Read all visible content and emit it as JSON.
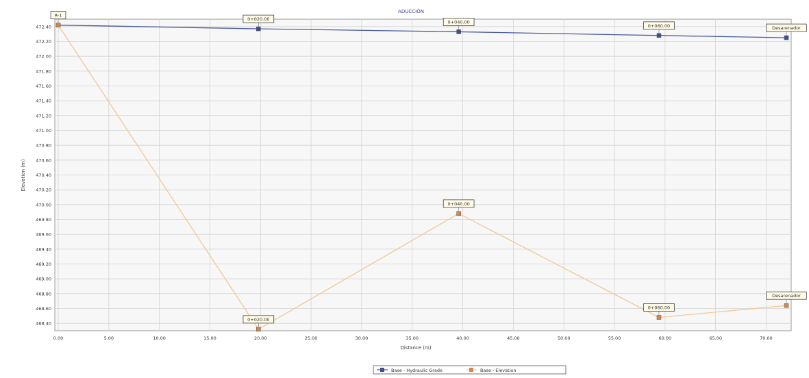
{
  "chart_data": {
    "type": "line",
    "title": "ADUCCIÓN",
    "xlabel": "Distance (m)",
    "ylabel": "Elevation (m)",
    "xlim": [
      0,
      72
    ],
    "ylim": [
      468.3,
      472.5
    ],
    "x_ticks": [
      "0.00",
      "5.00",
      "10.00",
      "15.00",
      "20.00",
      "25.00",
      "30.00",
      "35.00",
      "40.00",
      "45.00",
      "50.00",
      "55.00",
      "60.00",
      "65.00",
      "70.00"
    ],
    "y_ticks": [
      "468.40",
      "468.60",
      "468.80",
      "469.00",
      "469.20",
      "469.40",
      "469.60",
      "469.80",
      "470.00",
      "470.20",
      "470.40",
      "470.60",
      "470.80",
      "471.00",
      "471.20",
      "471.40",
      "471.60",
      "471.80",
      "472.00",
      "472.20",
      "472.40"
    ],
    "grid": true,
    "legend_position": "bottom",
    "series": [
      {
        "name": "Base - Hydraulic Grade",
        "color": "#4a5a9c",
        "marker_color": "#3d4f8f",
        "x": [
          0.0,
          19.8,
          39.6,
          59.4,
          72.0
        ],
        "y": [
          472.42,
          472.37,
          472.33,
          472.28,
          472.25
        ]
      },
      {
        "name": "Base - Elevation",
        "color": "#f0c896",
        "marker_color": "#d9864a",
        "x": [
          0.0,
          19.8,
          39.6,
          59.4,
          72.0
        ],
        "y": [
          472.42,
          468.32,
          469.88,
          468.48,
          468.64
        ]
      }
    ],
    "node_labels": {
      "hydraulic": [
        "R-1",
        "0+020.00",
        "0+040.00",
        "0+060.00",
        "Desarenador"
      ],
      "elevation": [
        "",
        "0+020.00",
        "0+040.00",
        "0+060.00",
        "Desarenador"
      ]
    }
  }
}
